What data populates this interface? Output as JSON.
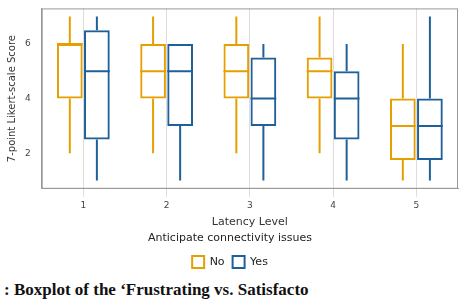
{
  "chart_data": {
    "type": "boxplot",
    "x_label": "Latency Level",
    "y_label": "7-point Likert-scale Score",
    "legend_title": "Anticipate connectivity issues",
    "caption": ": Boxplot of the ‘Frustrating vs. Satisfacto",
    "categories": [
      "1",
      "2",
      "3",
      "4",
      "5"
    ],
    "series": [
      {
        "name": "No",
        "color": "#E69F00",
        "min": [
          2,
          2,
          2,
          2,
          1
        ],
        "q1": [
          4,
          4,
          4,
          4,
          1.75
        ],
        "median": [
          6,
          5,
          5,
          5,
          3
        ],
        "q3": [
          6,
          6,
          6,
          5.5,
          4
        ],
        "max": [
          7,
          7,
          7,
          7,
          6
        ]
      },
      {
        "name": "Yes",
        "color": "#1F5F9A",
        "min": [
          1,
          1,
          1,
          1,
          1
        ],
        "q1": [
          2.5,
          3,
          3,
          2.5,
          1.75
        ],
        "median": [
          5,
          5,
          4,
          4,
          3
        ],
        "q3": [
          6.5,
          6,
          5.5,
          5,
          4
        ],
        "max": [
          7,
          6,
          6,
          6,
          7
        ]
      }
    ],
    "ylim": [
      0.7,
      7.3
    ],
    "yticks": [
      2,
      4,
      6
    ],
    "grid": true,
    "legend": "bottom"
  }
}
